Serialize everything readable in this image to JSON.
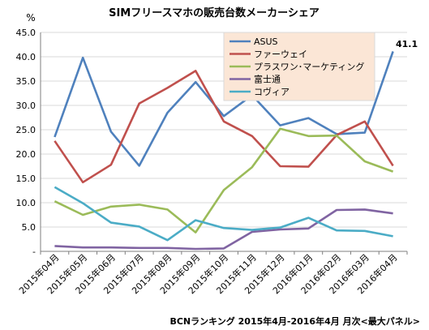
{
  "chart_data": {
    "type": "line",
    "title": "SIMフリースマホの販売台数メーカーシェア",
    "ylabel": "%",
    "ylim": [
      0,
      45
    ],
    "yticks": [
      "-",
      "5.0",
      "10.0",
      "15.0",
      "20.0",
      "25.0",
      "30.0",
      "35.0",
      "40.0",
      "45.0"
    ],
    "categories": [
      "2015年04月",
      "2015年05月",
      "2015年06月",
      "2015年07月",
      "2015年08月",
      "2015年09月",
      "2015年10月",
      "2015年11月",
      "2015年12月",
      "2016年01月",
      "2016年02月",
      "2016年03月",
      "2016年04月"
    ],
    "series": [
      {
        "name": "ASUS",
        "color": "#4f81bd",
        "values": [
          23.5,
          39.8,
          24.6,
          17.6,
          28.5,
          34.8,
          27.8,
          32.1,
          25.9,
          27.4,
          24.1,
          24.4,
          41.1
        ]
      },
      {
        "name": "ファーウェイ",
        "color": "#c0504d",
        "values": [
          22.7,
          14.2,
          17.8,
          30.4,
          33.6,
          37.1,
          26.7,
          23.7,
          17.5,
          17.4,
          23.9,
          26.7,
          17.6
        ]
      },
      {
        "name": "プラスワン･マーケティング",
        "color": "#9bbb59",
        "values": [
          10.3,
          7.5,
          9.2,
          9.6,
          8.6,
          3.9,
          12.6,
          17.3,
          25.2,
          23.7,
          23.8,
          18.5,
          16.4
        ]
      },
      {
        "name": "富士通",
        "color": "#8064a2",
        "values": [
          1.1,
          0.8,
          0.8,
          0.7,
          0.7,
          0.5,
          0.6,
          4.0,
          4.5,
          4.7,
          8.5,
          8.6,
          7.8
        ]
      },
      {
        "name": "コヴィア",
        "color": "#4bacc6",
        "values": [
          13.2,
          9.9,
          5.9,
          5.1,
          2.3,
          6.4,
          4.8,
          4.4,
          4.9,
          6.9,
          4.3,
          4.2,
          3.1
        ]
      }
    ],
    "annotations": [
      {
        "text": "41.1"
      }
    ],
    "grid": true,
    "legend_position": "top-right",
    "source": "BCNランキング 2015年4月-2016年4月 月次<最大パネル>"
  }
}
